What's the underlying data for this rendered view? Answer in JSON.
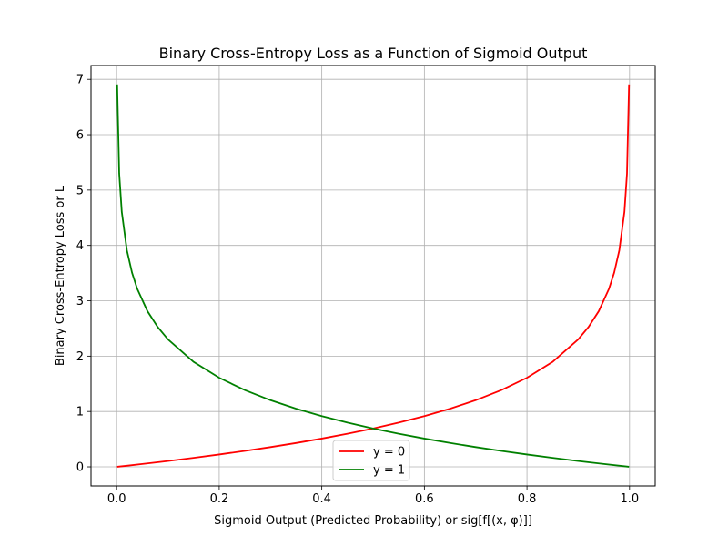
{
  "chart_data": {
    "type": "line",
    "title": "Binary Cross-Entropy Loss as a Function of Sigmoid Output",
    "xlabel": "Sigmoid Output (Predicted Probability) or sig[f[(x, φ)]]",
    "ylabel": "Binary Cross-Entropy Loss or L",
    "xlim": [
      -0.05,
      1.05
    ],
    "ylim": [
      -0.345,
      7.25
    ],
    "x_ticks": [
      0.0,
      0.2,
      0.4,
      0.6,
      0.8,
      1.0
    ],
    "x_tick_labels": [
      "0.0",
      "0.2",
      "0.4",
      "0.6",
      "0.8",
      "1.0"
    ],
    "y_ticks": [
      0,
      1,
      2,
      3,
      4,
      5,
      6,
      7
    ],
    "y_tick_labels": [
      "0",
      "1",
      "2",
      "3",
      "4",
      "5",
      "6",
      "7"
    ],
    "grid": true,
    "legend_position": "bottom-center",
    "series": [
      {
        "name": "y = 0",
        "color": "#ff0000",
        "x": [
          0.001,
          0.02,
          0.05,
          0.1,
          0.15,
          0.2,
          0.25,
          0.3,
          0.35,
          0.4,
          0.45,
          0.5,
          0.55,
          0.6,
          0.65,
          0.7,
          0.75,
          0.8,
          0.85,
          0.9,
          0.92,
          0.94,
          0.96,
          0.97,
          0.98,
          0.99,
          0.995,
          0.999
        ],
        "values": [
          0.001,
          0.02,
          0.051,
          0.105,
          0.163,
          0.223,
          0.288,
          0.357,
          0.431,
          0.511,
          0.598,
          0.693,
          0.799,
          0.916,
          1.05,
          1.204,
          1.386,
          1.609,
          1.897,
          2.303,
          2.526,
          2.813,
          3.219,
          3.507,
          3.912,
          4.605,
          5.298,
          6.908
        ]
      },
      {
        "name": "y = 1",
        "color": "#008000",
        "x": [
          0.001,
          0.005,
          0.01,
          0.02,
          0.03,
          0.04,
          0.06,
          0.08,
          0.1,
          0.15,
          0.2,
          0.25,
          0.3,
          0.35,
          0.4,
          0.45,
          0.5,
          0.55,
          0.6,
          0.65,
          0.7,
          0.75,
          0.8,
          0.85,
          0.9,
          0.95,
          0.999
        ],
        "values": [
          6.908,
          5.298,
          4.605,
          3.912,
          3.507,
          3.219,
          2.813,
          2.526,
          2.303,
          1.897,
          1.609,
          1.386,
          1.204,
          1.05,
          0.916,
          0.799,
          0.693,
          0.598,
          0.511,
          0.431,
          0.357,
          0.288,
          0.223,
          0.163,
          0.105,
          0.051,
          0.001
        ]
      }
    ]
  }
}
